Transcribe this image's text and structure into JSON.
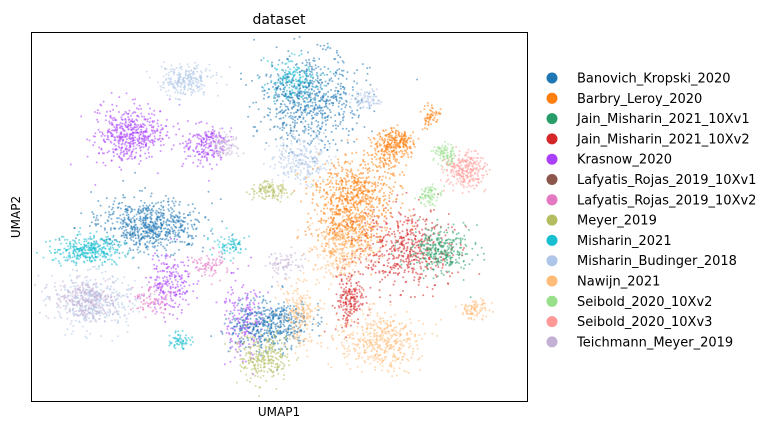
{
  "chart_data": {
    "type": "scatter",
    "title": "dataset",
    "xlabel": "UMAP1",
    "ylabel": "UMAP2",
    "grid": false,
    "ticks": false,
    "legend_placement": "right",
    "series": [
      {
        "name": "Banovich_Kropski_2020",
        "color": "#1f77b4"
      },
      {
        "name": "Barbry_Leroy_2020",
        "color": "#ff7f0e"
      },
      {
        "name": "Jain_Misharin_2021_10Xv1",
        "color": "#279e68"
      },
      {
        "name": "Jain_Misharin_2021_10Xv2",
        "color": "#d62728"
      },
      {
        "name": "Krasnow_2020",
        "color": "#aa40fc"
      },
      {
        "name": "Lafyatis_Rojas_2019_10Xv1",
        "color": "#8c564b"
      },
      {
        "name": "Lafyatis_Rojas_2019_10Xv2",
        "color": "#e377c2"
      },
      {
        "name": "Meyer_2019",
        "color": "#b5bd61"
      },
      {
        "name": "Misharin_2021",
        "color": "#17becf"
      },
      {
        "name": "Misharin_Budinger_2018",
        "color": "#aec7e8"
      },
      {
        "name": "Nawijn_2021",
        "color": "#ffbb78"
      },
      {
        "name": "Seibold_2020_10Xv2",
        "color": "#98df8a"
      },
      {
        "name": "Seibold_2020_10Xv3",
        "color": "#ff9896"
      },
      {
        "name": "Teichmann_Meyer_2019",
        "color": "#c5b0d5"
      }
    ]
  }
}
